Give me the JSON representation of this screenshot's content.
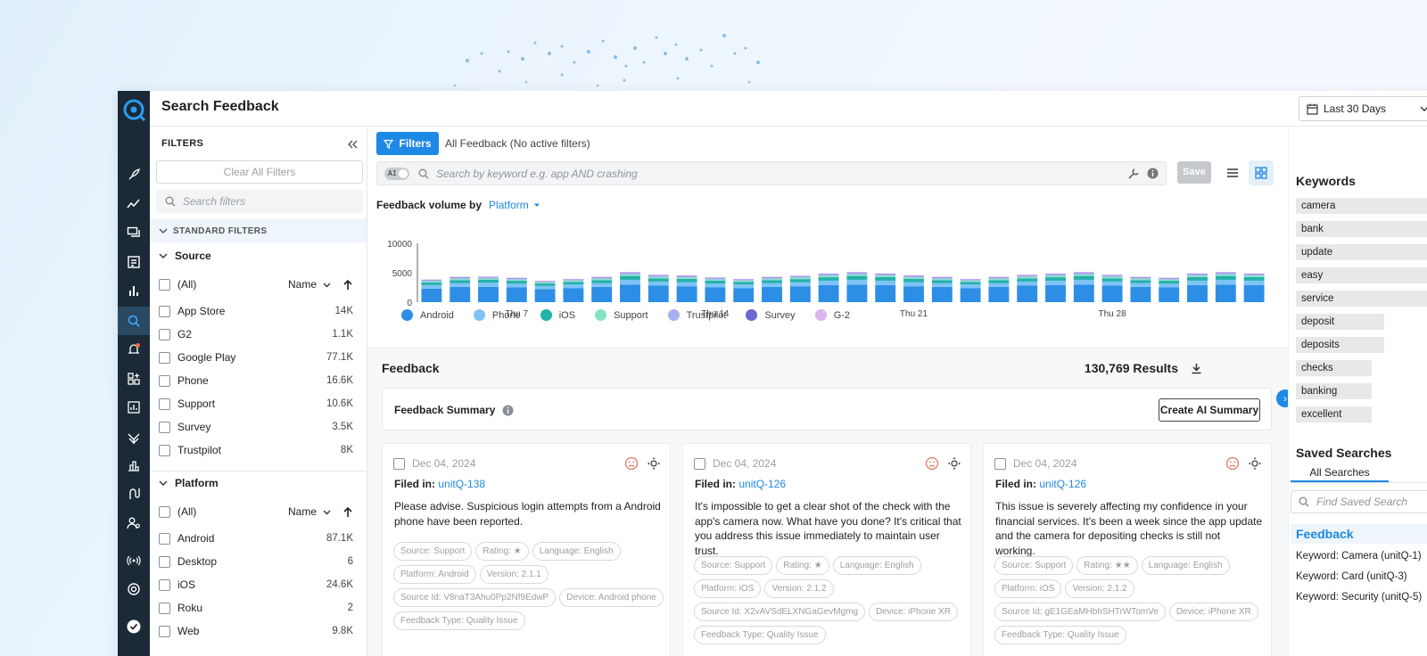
{
  "header": {
    "title": "Search Feedback",
    "date_range": "Last 30 Days"
  },
  "filters_panel": {
    "title": "FILTERS",
    "clear_all": "Clear All Filters",
    "search_placeholder": "Search filters",
    "standard_filters": "STANDARD FILTERS",
    "source": {
      "label": "Source",
      "all": "(All)",
      "sort": "Name",
      "items": [
        {
          "label": "App Store",
          "count": "14K"
        },
        {
          "label": "G2",
          "count": "1.1K"
        },
        {
          "label": "Google Play",
          "count": "77.1K"
        },
        {
          "label": "Phone",
          "count": "16.6K"
        },
        {
          "label": "Support",
          "count": "10.6K"
        },
        {
          "label": "Survey",
          "count": "3.5K"
        },
        {
          "label": "Trustpilot",
          "count": "8K"
        }
      ]
    },
    "platform": {
      "label": "Platform",
      "all": "(All)",
      "sort": "Name",
      "items": [
        {
          "label": "Android",
          "count": "87.1K"
        },
        {
          "label": "Desktop",
          "count": "6"
        },
        {
          "label": "iOS",
          "count": "24.6K"
        },
        {
          "label": "Roku",
          "count": "2"
        },
        {
          "label": "Web",
          "count": "9.8K"
        }
      ]
    }
  },
  "main": {
    "filters_button": "Filters",
    "active_filters": "All Feedback (No active filters)",
    "ai_label": "AI",
    "search_placeholder": "Search by keyword e.g. app AND crashing",
    "save_label": "Save",
    "volume_label": "Feedback volume by",
    "volume_dimension": "Platform"
  },
  "chart_data": {
    "type": "bar",
    "stacked": true,
    "title": "Feedback volume by Platform",
    "ylim": [
      0,
      10000
    ],
    "yticks": [
      "10000",
      "5000",
      "0"
    ],
    "xtick_labels": [
      {
        "index": 3,
        "label": "Thu 7"
      },
      {
        "index": 10,
        "label": "Thu 14"
      },
      {
        "index": 17,
        "label": "Thu 21"
      },
      {
        "index": 24,
        "label": "Thu 28"
      }
    ],
    "days": 30,
    "series": [
      {
        "name": "Android",
        "color": "#2d8ee6",
        "values": [
          2300,
          2600,
          2600,
          2500,
          2200,
          2400,
          2600,
          3000,
          2800,
          2700,
          2500,
          2400,
          2600,
          2700,
          2900,
          3000,
          2900,
          2700,
          2600,
          2400,
          2600,
          2800,
          2900,
          3000,
          2800,
          2600,
          2500,
          2900,
          3000,
          2900
        ]
      },
      {
        "name": "Phone",
        "color": "#7ec3f5",
        "values": [
          600,
          650,
          700,
          650,
          550,
          600,
          650,
          800,
          700,
          700,
          650,
          600,
          650,
          700,
          750,
          800,
          750,
          700,
          650,
          600,
          650,
          700,
          750,
          800,
          700,
          650,
          650,
          750,
          800,
          750
        ]
      },
      {
        "name": "iOS",
        "color": "#23b1ac",
        "values": [
          450,
          500,
          500,
          480,
          420,
          450,
          500,
          650,
          550,
          550,
          500,
          450,
          500,
          520,
          580,
          650,
          600,
          550,
          500,
          450,
          500,
          550,
          580,
          650,
          550,
          500,
          480,
          600,
          650,
          600
        ]
      },
      {
        "name": "Support",
        "color": "#86e3c0",
        "values": [
          200,
          220,
          220,
          210,
          190,
          200,
          220,
          260,
          240,
          230,
          220,
          200,
          220,
          230,
          250,
          260,
          250,
          240,
          220,
          200,
          220,
          240,
          250,
          260,
          240,
          220,
          210,
          250,
          260,
          250
        ]
      },
      {
        "name": "Trustpilot",
        "color": "#a7b1f2",
        "values": [
          180,
          200,
          200,
          190,
          170,
          180,
          200,
          240,
          220,
          210,
          200,
          180,
          200,
          210,
          230,
          240,
          230,
          220,
          200,
          180,
          200,
          220,
          230,
          240,
          220,
          200,
          190,
          230,
          240,
          230
        ]
      },
      {
        "name": "Survey",
        "color": "#6c66d4",
        "values": [
          80,
          90,
          90,
          85,
          75,
          80,
          90,
          110,
          100,
          95,
          90,
          80,
          90,
          95,
          105,
          110,
          105,
          100,
          90,
          80,
          90,
          100,
          105,
          110,
          100,
          90,
          85,
          105,
          110,
          105
        ]
      },
      {
        "name": "G-2",
        "color": "#d8b4f0",
        "values": [
          40,
          45,
          45,
          42,
          38,
          40,
          45,
          55,
          50,
          48,
          45,
          40,
          45,
          48,
          52,
          55,
          52,
          50,
          45,
          40,
          45,
          50,
          52,
          55,
          50,
          45,
          42,
          52,
          55,
          52
        ]
      }
    ]
  },
  "feedback": {
    "title": "Feedback",
    "results": "130,769 Results",
    "summary_label": "Feedback Summary",
    "create_ai_summary": "Create AI Summary",
    "cards": [
      {
        "date": "Dec 04, 2024",
        "filed_label": "Filed in:",
        "filed_value": "unitQ-138",
        "text": "Please advise. Suspicious login attempts from a Android phone have been reported.",
        "tags": [
          "Source: Support",
          "Rating: ★",
          "Language: English",
          "Platform: Android",
          "Version: 2.1.1",
          "Source Id: V8naT3Ahu0Pp2Nf9EdwP",
          "Device: Android phone",
          "Feedback Type: Quality Issue"
        ]
      },
      {
        "date": "Dec 04, 2024",
        "filed_label": "Filed in:",
        "filed_value": "unitQ-126",
        "text": "It's impossible to get a clear shot of the check with the app's camera now. What have you done? It's critical that you address this issue immediately to maintain user trust.",
        "tags": [
          "Source: Support",
          "Rating: ★",
          "Language: English",
          "Platform: iOS",
          "Version: 2.1.2",
          "Source Id: X2vAVSdELXNGaGevMgmg",
          "Device: iPhone XR",
          "Feedback Type: Quality Issue"
        ]
      },
      {
        "date": "Dec 04, 2024",
        "filed_label": "Filed in:",
        "filed_value": "unitQ-126",
        "text": "This issue is severely affecting my confidence in your financial services. It's been a week since the app update and the camera for depositing checks is still not working.",
        "tags": [
          "Source: Support",
          "Rating: ★★",
          "Language: English",
          "Platform: iOS",
          "Version: 2.1.2",
          "Source Id: gE1GEaMHbhSHTrWTomVe",
          "Device: iPhone XR",
          "Feedback Type: Quality Issue"
        ]
      }
    ]
  },
  "right_panel": {
    "keywords_title": "Keywords",
    "keywords": [
      {
        "label": "camera",
        "weight": 1.0
      },
      {
        "label": "bank",
        "weight": 0.98
      },
      {
        "label": "update",
        "weight": 0.96
      },
      {
        "label": "easy",
        "weight": 0.93
      },
      {
        "label": "service",
        "weight": 0.9
      },
      {
        "label": "deposit",
        "weight": 0.55
      },
      {
        "label": "deposits",
        "weight": 0.55
      },
      {
        "label": "checks",
        "weight": 0.47
      },
      {
        "label": "banking",
        "weight": 0.47
      },
      {
        "label": "excellent",
        "weight": 0.47
      }
    ],
    "saved_searches_title": "Saved Searches",
    "all_searches_tab": "All Searches",
    "find_placeholder": "Find Saved Search",
    "section_head": "Feedback",
    "items": [
      "Keyword: Camera (unitQ-1)",
      "Keyword: Card (unitQ-3)",
      "Keyword: Security (unitQ-5)"
    ]
  }
}
